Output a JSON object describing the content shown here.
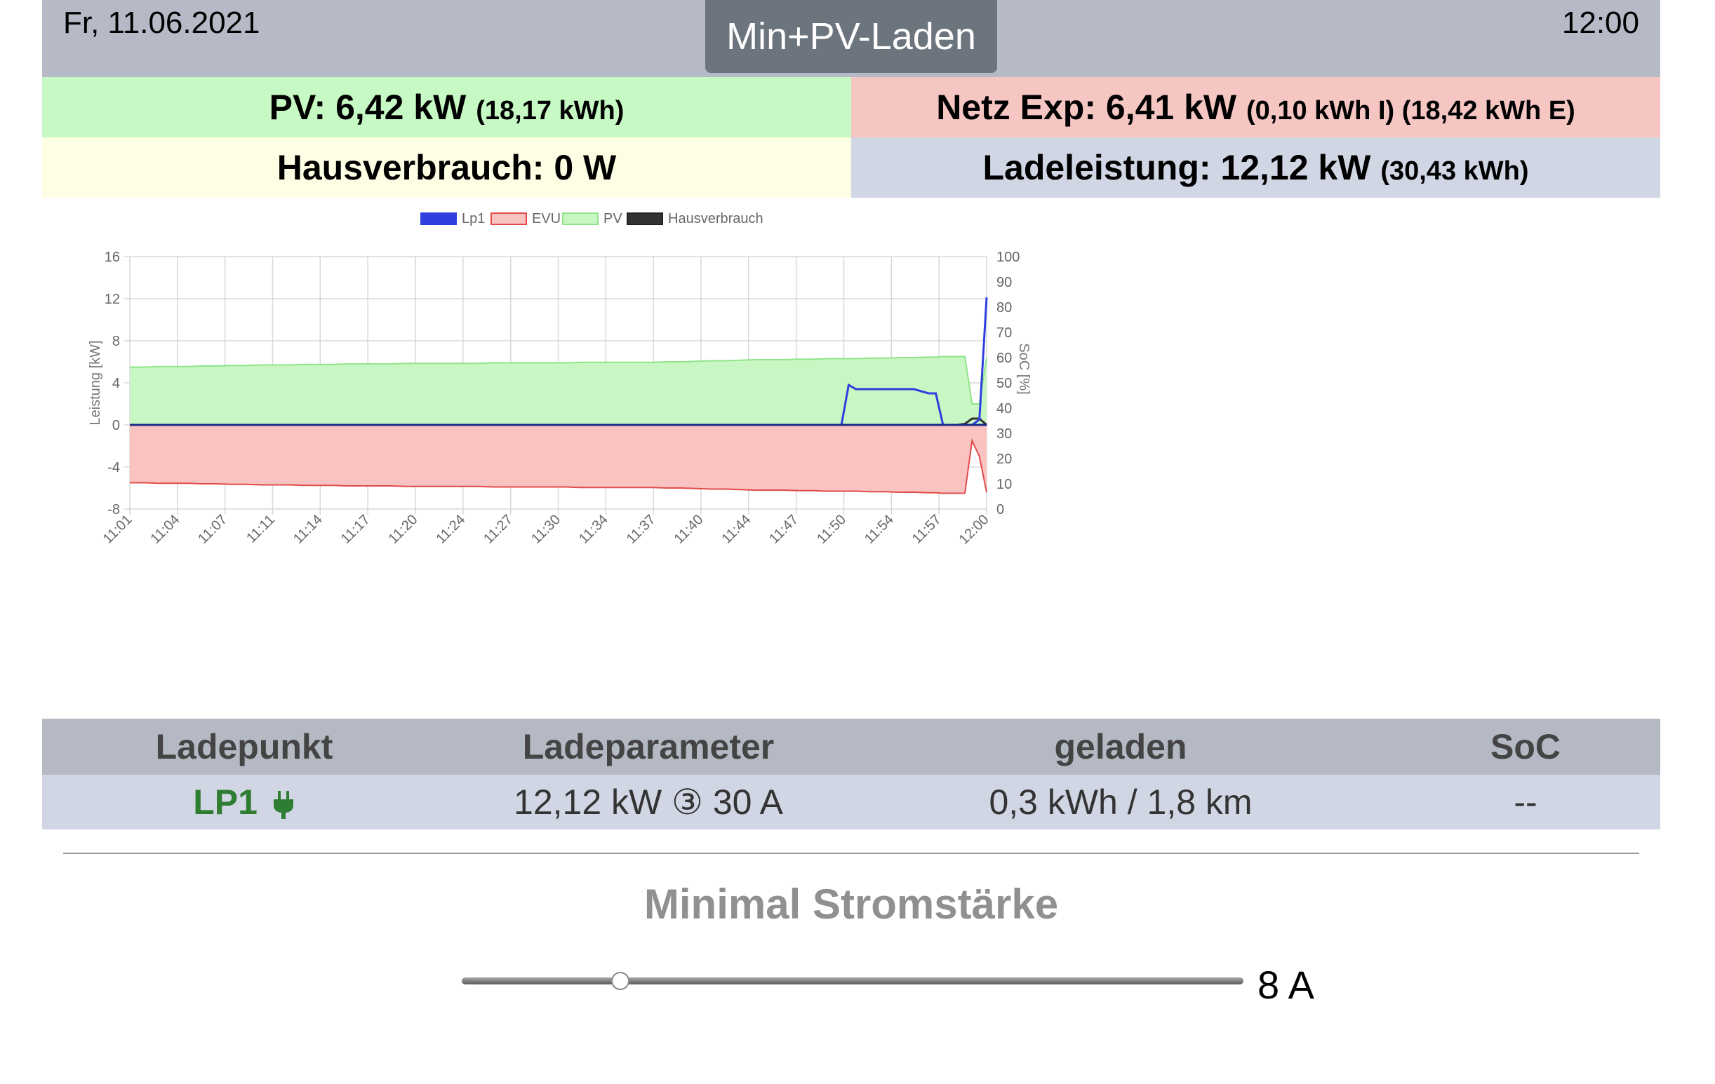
{
  "header": {
    "date": "Fr, 11.06.2021",
    "mode": "Min+PV-Laden",
    "time": "12:00"
  },
  "summary": {
    "pv": {
      "label": "PV: 6,42 kW",
      "detail": "(18,17 kWh)"
    },
    "netz": {
      "label": "Netz Exp: 6,41 kW",
      "detail": "(0,10 kWh I) (18,42 kWh E)"
    },
    "haus": {
      "label": "Hausverbrauch: 0 W"
    },
    "lade": {
      "label": "Ladeleistung: 12,12 kW",
      "detail": "(30,43 kWh)"
    }
  },
  "colors": {
    "lp1": "#2f3fe0",
    "evu_fill": "#f8c3c0",
    "evu_line": "#e24b4b",
    "pv_fill": "#c9f7c3",
    "pv_line": "#8fe48a",
    "haus": "#333333",
    "lp_green": "#2f7d32"
  },
  "chart_data": {
    "type": "line",
    "legend": [
      "Lp1",
      "EVU",
      "PV",
      "Hausverbrauch"
    ],
    "legend_position": "top",
    "ylabel": "Leistung [kW]",
    "y2label": "SoC [%]",
    "ylim": [
      -8,
      16
    ],
    "yticks": [
      16,
      12,
      8,
      4,
      0,
      -4,
      -8
    ],
    "y2lim": [
      0,
      100
    ],
    "y2ticks": [
      100,
      90,
      80,
      70,
      60,
      50,
      40,
      30,
      20,
      10,
      0
    ],
    "grid": true,
    "xticks": [
      "11:01",
      "11:04",
      "11:07",
      "11:11",
      "11:14",
      "11:17",
      "11:20",
      "11:24",
      "11:27",
      "11:30",
      "11:34",
      "11:37",
      "11:40",
      "11:44",
      "11:47",
      "11:50",
      "11:54",
      "11:57",
      "12:00"
    ],
    "x_minutes": [
      1,
      2,
      3,
      4,
      5,
      6,
      7,
      8,
      9,
      10,
      11,
      12,
      13,
      14,
      15,
      16,
      17,
      18,
      19,
      20,
      21,
      22,
      23,
      24,
      25,
      26,
      27,
      28,
      29,
      30,
      31,
      32,
      33,
      34,
      35,
      36,
      37,
      38,
      39,
      40,
      41,
      42,
      43,
      44,
      45,
      46,
      47,
      48,
      49,
      50,
      50.5,
      51,
      52,
      53,
      54,
      55,
      56,
      56.5,
      57,
      58,
      58.5,
      59,
      59.5,
      60
    ],
    "series": [
      {
        "name": "PV",
        "values": [
          5.5,
          5.5,
          5.55,
          5.55,
          5.55,
          5.6,
          5.6,
          5.65,
          5.65,
          5.7,
          5.7,
          5.7,
          5.75,
          5.75,
          5.75,
          5.8,
          5.8,
          5.8,
          5.8,
          5.85,
          5.85,
          5.85,
          5.85,
          5.85,
          5.85,
          5.9,
          5.9,
          5.9,
          5.9,
          5.9,
          5.9,
          5.95,
          5.95,
          5.95,
          5.95,
          5.95,
          5.95,
          6.0,
          6.0,
          6.05,
          6.1,
          6.1,
          6.15,
          6.2,
          6.2,
          6.2,
          6.25,
          6.25,
          6.3,
          6.3,
          6.3,
          6.3,
          6.35,
          6.35,
          6.4,
          6.4,
          6.45,
          6.45,
          6.5,
          6.5,
          6.5,
          2.0,
          2.0,
          6.42
        ]
      },
      {
        "name": "EVU",
        "values": [
          -5.5,
          -5.5,
          -5.55,
          -5.55,
          -5.55,
          -5.6,
          -5.6,
          -5.65,
          -5.65,
          -5.7,
          -5.7,
          -5.7,
          -5.75,
          -5.75,
          -5.75,
          -5.8,
          -5.8,
          -5.8,
          -5.8,
          -5.85,
          -5.85,
          -5.85,
          -5.85,
          -5.85,
          -5.85,
          -5.9,
          -5.9,
          -5.9,
          -5.9,
          -5.9,
          -5.9,
          -5.95,
          -5.95,
          -5.95,
          -5.95,
          -5.95,
          -5.95,
          -6.0,
          -6.0,
          -6.05,
          -6.1,
          -6.1,
          -6.15,
          -6.2,
          -6.2,
          -6.2,
          -6.25,
          -6.25,
          -6.3,
          -6.3,
          -6.3,
          -6.3,
          -6.35,
          -6.35,
          -6.4,
          -6.4,
          -6.45,
          -6.45,
          -6.5,
          -6.5,
          -6.5,
          -1.5,
          -3.0,
          -6.41
        ]
      },
      {
        "name": "Lp1",
        "values": [
          0,
          0,
          0,
          0,
          0,
          0,
          0,
          0,
          0,
          0,
          0,
          0,
          0,
          0,
          0,
          0,
          0,
          0,
          0,
          0,
          0,
          0,
          0,
          0,
          0,
          0,
          0,
          0,
          0,
          0,
          0,
          0,
          0,
          0,
          0,
          0,
          0,
          0,
          0,
          0,
          0,
          0,
          0,
          0,
          0,
          0,
          0,
          0,
          0,
          0,
          3.8,
          3.4,
          3.4,
          3.4,
          3.4,
          3.4,
          3.0,
          3.0,
          0,
          0,
          0,
          0,
          0.5,
          12.12
        ]
      },
      {
        "name": "Hausverbrauch",
        "values": [
          0,
          0,
          0,
          0,
          0,
          0,
          0,
          0,
          0,
          0,
          0,
          0,
          0,
          0,
          0,
          0,
          0,
          0,
          0,
          0,
          0,
          0,
          0,
          0,
          0,
          0,
          0,
          0,
          0,
          0,
          0,
          0,
          0,
          0,
          0,
          0,
          0,
          0,
          0,
          0,
          0,
          0,
          0,
          0,
          0,
          0,
          0,
          0,
          0,
          0,
          0,
          0,
          0,
          0,
          0,
          0,
          0,
          0,
          0,
          0,
          0.1,
          0.6,
          0.6,
          0
        ]
      }
    ]
  },
  "table": {
    "headers": [
      "Ladepunkt",
      "Ladeparameter",
      "geladen",
      "SoC"
    ],
    "row": {
      "name": "LP1",
      "parameter": "12,12 kW ③ 30 A",
      "geladen": "0,3 kWh / 1,8 km",
      "soc": "--"
    }
  },
  "min_current": {
    "title": "Minimal Stromstärke",
    "value_label": "8 A",
    "value": 8,
    "min": 6,
    "max": 32
  }
}
